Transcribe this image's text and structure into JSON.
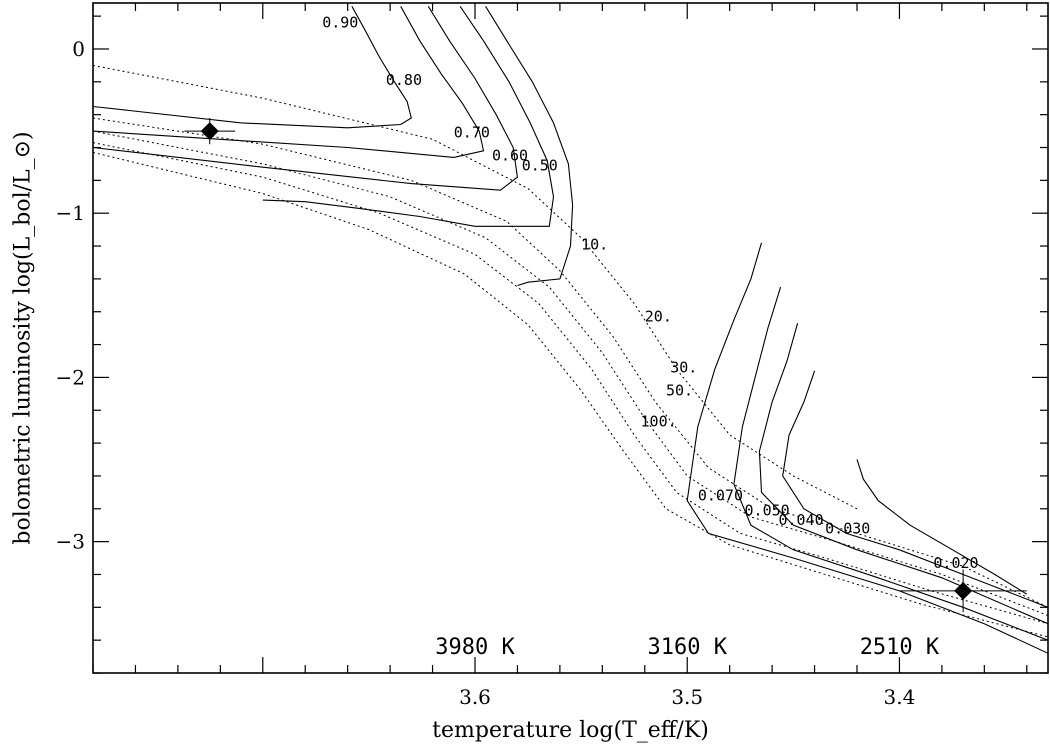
{
  "chart_data": {
    "type": "line",
    "title": "",
    "xlabel": "temperature log(T_eff/K)",
    "ylabel": "bolometric luminosity log(L_bol/L_⊙)",
    "xlim": [
      3.78,
      3.33
    ],
    "ylim": [
      -3.8,
      0.28
    ],
    "x_inverted": true,
    "x_ticks": [
      3.6,
      3.5,
      3.4
    ],
    "x_tick_labels": [
      "3.6",
      "3.5",
      "3.4"
    ],
    "y_ticks": [
      0,
      -1,
      -2,
      -3
    ],
    "y_tick_labels": [
      "0",
      "−1",
      "−2",
      "−3"
    ],
    "grid": false,
    "legend": "none",
    "series": [
      {
        "label": "0.90",
        "style": "solid",
        "x": [
          3.658,
          3.652,
          3.645,
          3.638,
          3.632,
          3.63,
          3.635,
          3.66,
          3.71,
          3.78
        ],
        "y": [
          0.26,
          0.12,
          -0.05,
          -0.2,
          -0.32,
          -0.42,
          -0.46,
          -0.48,
          -0.45,
          -0.35
        ]
      },
      {
        "label": "0.80",
        "style": "solid",
        "x": [
          3.635,
          3.626,
          3.616,
          3.606,
          3.598,
          3.596,
          3.61,
          3.66,
          3.72,
          3.78
        ],
        "y": [
          0.26,
          0.05,
          -0.15,
          -0.33,
          -0.5,
          -0.62,
          -0.66,
          -0.6,
          -0.55,
          -0.5
        ]
      },
      {
        "label": "0.70",
        "style": "solid",
        "x": [
          3.622,
          3.612,
          3.6,
          3.59,
          3.582,
          3.58,
          3.588,
          3.63,
          3.7,
          3.78
        ],
        "y": [
          0.26,
          0.05,
          -0.18,
          -0.4,
          -0.6,
          -0.78,
          -0.86,
          -0.82,
          -0.72,
          -0.6
        ]
      },
      {
        "label": "0.60",
        "style": "solid",
        "x": [
          3.607,
          3.596,
          3.584,
          3.574,
          3.566,
          3.563,
          3.565,
          3.6,
          3.626,
          3.655,
          3.68,
          3.7
        ],
        "y": [
          0.26,
          0.05,
          -0.2,
          -0.45,
          -0.68,
          -0.9,
          -1.08,
          -1.08,
          -1.02,
          -0.97,
          -0.93,
          -0.92
        ]
      },
      {
        "label": "0.50",
        "style": "solid",
        "x": [
          3.595,
          3.585,
          3.573,
          3.563,
          3.556,
          3.554,
          3.555,
          3.56,
          3.575,
          3.58
        ],
        "y": [
          0.26,
          0.05,
          -0.2,
          -0.45,
          -0.7,
          -0.95,
          -1.2,
          -1.4,
          -1.42,
          -1.44
        ]
      },
      {
        "label": "0.070",
        "style": "solid",
        "x": [
          3.465,
          3.47,
          3.478,
          3.487,
          3.495,
          3.5,
          3.49,
          3.45,
          3.4,
          3.36,
          3.33
        ],
        "y": [
          -1.18,
          -1.4,
          -1.65,
          -1.95,
          -2.3,
          -2.75,
          -2.95,
          -3.1,
          -3.3,
          -3.5,
          -3.68
        ]
      },
      {
        "label": "0.050",
        "style": "solid",
        "x": [
          3.456,
          3.462,
          3.468,
          3.474,
          3.478,
          3.47,
          3.45,
          3.41,
          3.37,
          3.33
        ],
        "y": [
          -1.45,
          -1.7,
          -2.0,
          -2.3,
          -2.65,
          -2.9,
          -3.05,
          -3.22,
          -3.4,
          -3.6
        ]
      },
      {
        "label": "0.040",
        "style": "solid",
        "x": [
          3.448,
          3.453,
          3.46,
          3.466,
          3.465,
          3.45,
          3.42,
          3.38,
          3.33
        ],
        "y": [
          -1.67,
          -1.9,
          -2.15,
          -2.45,
          -2.7,
          -2.9,
          -3.05,
          -3.22,
          -3.5
        ]
      },
      {
        "label": "0.030",
        "style": "solid",
        "x": [
          3.44,
          3.445,
          3.452,
          3.455,
          3.445,
          3.425,
          3.4,
          3.37,
          3.33
        ],
        "y": [
          -1.96,
          -2.15,
          -2.35,
          -2.6,
          -2.8,
          -2.95,
          -3.05,
          -3.2,
          -3.4
        ]
      },
      {
        "label": "0.020",
        "style": "solid",
        "x": [
          3.42,
          3.417,
          3.41,
          3.395,
          3.375,
          3.355,
          3.34
        ],
        "y": [
          -2.5,
          -2.62,
          -2.75,
          -2.9,
          -3.05,
          -3.2,
          -3.32
        ]
      },
      {
        "label": "10.",
        "style": "dotted",
        "x": [
          3.78,
          3.7,
          3.62,
          3.575,
          3.55,
          3.525,
          3.505,
          3.48,
          3.45,
          3.42
        ],
        "y": [
          -0.1,
          -0.3,
          -0.55,
          -0.85,
          -1.15,
          -1.55,
          -1.95,
          -2.35,
          -2.6,
          -2.8
        ]
      },
      {
        "label": "20.",
        "style": "dotted",
        "x": [
          3.78,
          3.7,
          3.63,
          3.585,
          3.56,
          3.535,
          3.515,
          3.49,
          3.46,
          3.42,
          3.37,
          3.33
        ],
        "y": [
          -0.42,
          -0.58,
          -0.8,
          -1.05,
          -1.35,
          -1.75,
          -2.15,
          -2.55,
          -2.8,
          -2.95,
          -3.15,
          -3.4
        ]
      },
      {
        "label": "30.",
        "style": "dotted",
        "x": [
          3.78,
          3.7,
          3.64,
          3.595,
          3.565,
          3.54,
          3.52,
          3.5,
          3.47,
          3.43,
          3.38,
          3.33
        ],
        "y": [
          -0.5,
          -0.7,
          -0.9,
          -1.15,
          -1.45,
          -1.85,
          -2.25,
          -2.6,
          -2.85,
          -3.0,
          -3.2,
          -3.45
        ]
      },
      {
        "label": "50.",
        "style": "dotted",
        "x": [
          3.78,
          3.7,
          3.645,
          3.6,
          3.57,
          3.545,
          3.525,
          3.505,
          3.475,
          3.435,
          3.385,
          3.33
        ],
        "y": [
          -0.57,
          -0.78,
          -1.0,
          -1.25,
          -1.55,
          -1.95,
          -2.35,
          -2.7,
          -2.95,
          -3.1,
          -3.3,
          -3.5
        ]
      },
      {
        "label": "100.",
        "style": "dotted",
        "x": [
          3.78,
          3.7,
          3.65,
          3.605,
          3.575,
          3.55,
          3.53,
          3.51,
          3.48,
          3.44,
          3.39,
          3.33
        ],
        "y": [
          -0.63,
          -0.88,
          -1.1,
          -1.37,
          -1.68,
          -2.08,
          -2.45,
          -2.8,
          -3.02,
          -3.18,
          -3.38,
          -3.58
        ]
      }
    ],
    "points": [
      {
        "x": 3.725,
        "y": -0.5,
        "marker": "diamond",
        "xerr": 0.012,
        "yerr": 0.08
      },
      {
        "x": 3.37,
        "y": -3.3,
        "marker": "diamond",
        "xerr": 0.03,
        "yerr": 0.13
      }
    ],
    "annotations": [
      {
        "text": "0.90",
        "x": 3.672,
        "y": 0.13
      },
      {
        "text": "0.80",
        "x": 3.642,
        "y": -0.22
      },
      {
        "text": "0.70",
        "x": 3.61,
        "y": -0.54
      },
      {
        "text": "0.60",
        "x": 3.592,
        "y": -0.68
      },
      {
        "text": "0.50",
        "x": 3.578,
        "y": -0.74
      },
      {
        "text": "10.",
        "x": 3.55,
        "y": -1.22
      },
      {
        "text": "20.",
        "x": 3.52,
        "y": -1.66
      },
      {
        "text": "30.",
        "x": 3.508,
        "y": -1.97
      },
      {
        "text": "50.",
        "x": 3.51,
        "y": -2.11
      },
      {
        "text": "100.",
        "x": 3.522,
        "y": -2.3
      },
      {
        "text": "0.070",
        "x": 3.495,
        "y": -2.75
      },
      {
        "text": "0.050",
        "x": 3.473,
        "y": -2.84
      },
      {
        "text": "0.040",
        "x": 3.457,
        "y": -2.9
      },
      {
        "text": "0.030",
        "x": 3.435,
        "y": -2.95
      },
      {
        "text": "0.020",
        "x": 3.384,
        "y": -3.16
      }
    ],
    "temperature_labels": [
      "3980 K",
      "3160 K",
      "2510 K"
    ],
    "temperature_label_x": [
      3.6,
      3.5,
      3.4
    ]
  }
}
